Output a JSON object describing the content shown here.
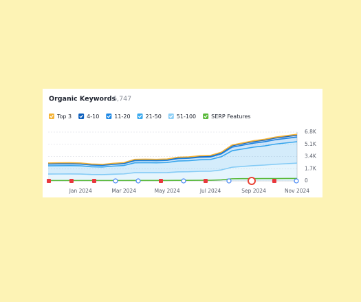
{
  "chart_data": {
    "type": "stacked-area",
    "title": "Organic Keywords",
    "subtitle": "6,747",
    "categories": [
      null,
      null,
      null,
      "Jan 2024",
      null,
      null,
      null,
      "Mar 2024",
      null,
      null,
      null,
      "May 2024",
      null,
      null,
      null,
      "Jul 2024",
      null,
      null,
      null,
      "Sep 2024",
      null,
      null,
      null,
      "Nov 2024"
    ],
    "series": [
      {
        "name": "Top 3",
        "color": "#f5b335",
        "stack": true,
        "values": [
          50,
          50,
          51,
          50,
          47,
          46,
          49,
          51,
          60,
          60,
          60,
          61,
          66,
          67,
          70,
          71,
          80,
          100,
          106,
          112,
          116,
          122,
          126,
          130
        ]
      },
      {
        "name": "4-10",
        "color": "#0d5fbd",
        "stack": true,
        "values": [
          100,
          101,
          101,
          100,
          94,
          92,
          98,
          102,
          120,
          121,
          120,
          122,
          132,
          134,
          140,
          142,
          160,
          200,
          212,
          224,
          232,
          244,
          252,
          260
        ]
      },
      {
        "name": "11-20",
        "color": "#1e88e5",
        "stack": true,
        "values": [
          250,
          252,
          253,
          250,
          235,
          230,
          245,
          255,
          300,
          302,
          300,
          305,
          330,
          335,
          350,
          355,
          400,
          500,
          530,
          560,
          580,
          610,
          630,
          650
        ]
      },
      {
        "name": "21-50",
        "color": "#3aa9ee",
        "stack": true,
        "values": [
          1150,
          1159,
          1164,
          1150,
          1081,
          1058,
          1127,
          1173,
          1380,
          1389,
          1380,
          1403,
          1518,
          1541,
          1610,
          1633,
          1840,
          2300,
          2438,
          2576,
          2668,
          2806,
          2898,
          2990
        ]
      },
      {
        "name": "51-100",
        "color": "#8fd0f7",
        "stack": true,
        "values": [
          950,
          958,
          961,
          950,
          893,
          874,
          931,
          969,
          1140,
          1148,
          1140,
          1159,
          1254,
          1273,
          1330,
          1349,
          1520,
          1900,
          2014,
          2128,
          2204,
          2318,
          2394,
          2470
        ]
      },
      {
        "name": "SERP Features",
        "color": "#59b93a",
        "stack": false,
        "values": [
          60,
          60,
          60,
          60,
          60,
          60,
          60,
          60,
          70,
          70,
          70,
          70,
          80,
          80,
          90,
          90,
          150,
          300,
          320,
          320,
          330,
          330,
          340,
          340
        ]
      }
    ],
    "ylim": [
      0,
      6800
    ],
    "yticks": [
      0,
      {
        "value": 1700,
        "label": "1.7K"
      },
      {
        "value": 3400,
        "label": "3.4K"
      },
      {
        "value": 5100,
        "label": "5.1K"
      },
      {
        "value": 6800,
        "label": "6.8K"
      }
    ],
    "grid": true
  }
}
